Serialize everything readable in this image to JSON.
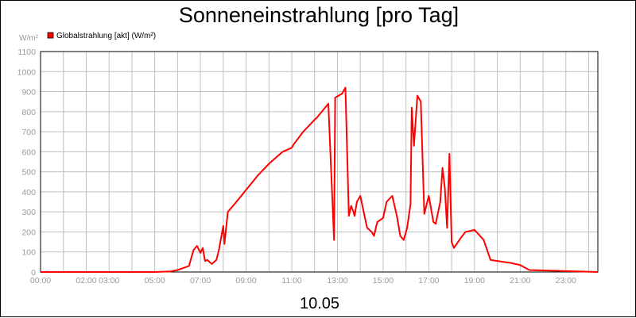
{
  "chart_data": {
    "type": "line",
    "title": "Sonneneinstrahlung [pro Tag]",
    "ylabel": "W/m²",
    "xlabel": "10.05",
    "ylim": [
      0,
      1100
    ],
    "xlim": [
      0,
      24.4
    ],
    "y_ticks": [
      0,
      100,
      200,
      300,
      400,
      500,
      600,
      700,
      800,
      900,
      1000,
      1100
    ],
    "y_tick_labels": [
      "0",
      "100",
      "200",
      "300",
      "400",
      "500",
      "600",
      "700",
      "800",
      "900",
      "1000",
      "1100"
    ],
    "x_ticks": [
      0,
      2,
      3,
      5,
      7,
      9,
      11,
      13,
      15,
      17,
      19,
      21,
      23
    ],
    "x_tick_labels": [
      "00:00",
      "02:00",
      "03:00",
      "05:00",
      "07:00",
      "09:00",
      "11:00",
      "13:00",
      "15:00",
      "17:00",
      "19:00",
      "21:00",
      "23:00"
    ],
    "grid": true,
    "legend_position": "top-left",
    "series": [
      {
        "name": "Globalstrahlung [akt] (W/m²)",
        "color": "#ff0000",
        "x": [
          0,
          5,
          5.7,
          6.0,
          6.5,
          6.7,
          6.85,
          7.0,
          7.1,
          7.2,
          7.3,
          7.4,
          7.5,
          7.7,
          7.8,
          8.0,
          8.05,
          8.2,
          8.5,
          9.0,
          9.5,
          10.0,
          10.6,
          11.0,
          11.1,
          11.5,
          12.0,
          12.1,
          12.6,
          12.85,
          12.9,
          13.2,
          13.35,
          13.5,
          13.6,
          13.7,
          13.75,
          13.85,
          14.0,
          14.3,
          14.5,
          14.6,
          14.7,
          14.75,
          15.0,
          15.15,
          15.4,
          15.6,
          15.75,
          15.9,
          16.05,
          16.2,
          16.25,
          16.35,
          16.5,
          16.65,
          16.8,
          17.0,
          17.2,
          17.3,
          17.5,
          17.6,
          17.7,
          17.8,
          17.9,
          18.0,
          18.1,
          18.4,
          18.6,
          19.0,
          19.4,
          19.7,
          20.0,
          20.3,
          20.6,
          21.0,
          21.4,
          24.4
        ],
        "y": [
          0,
          0,
          3,
          10,
          30,
          110,
          130,
          95,
          120,
          55,
          60,
          50,
          40,
          60,
          105,
          230,
          140,
          300,
          340,
          410,
          480,
          540,
          600,
          620,
          640,
          700,
          760,
          770,
          840,
          160,
          870,
          890,
          920,
          280,
          330,
          300,
          280,
          350,
          380,
          220,
          200,
          180,
          230,
          250,
          270,
          350,
          380,
          280,
          180,
          160,
          220,
          340,
          820,
          630,
          880,
          850,
          290,
          380,
          250,
          240,
          350,
          520,
          420,
          220,
          590,
          150,
          120,
          170,
          200,
          210,
          160,
          60,
          55,
          50,
          45,
          35,
          10,
          0
        ]
      }
    ]
  }
}
